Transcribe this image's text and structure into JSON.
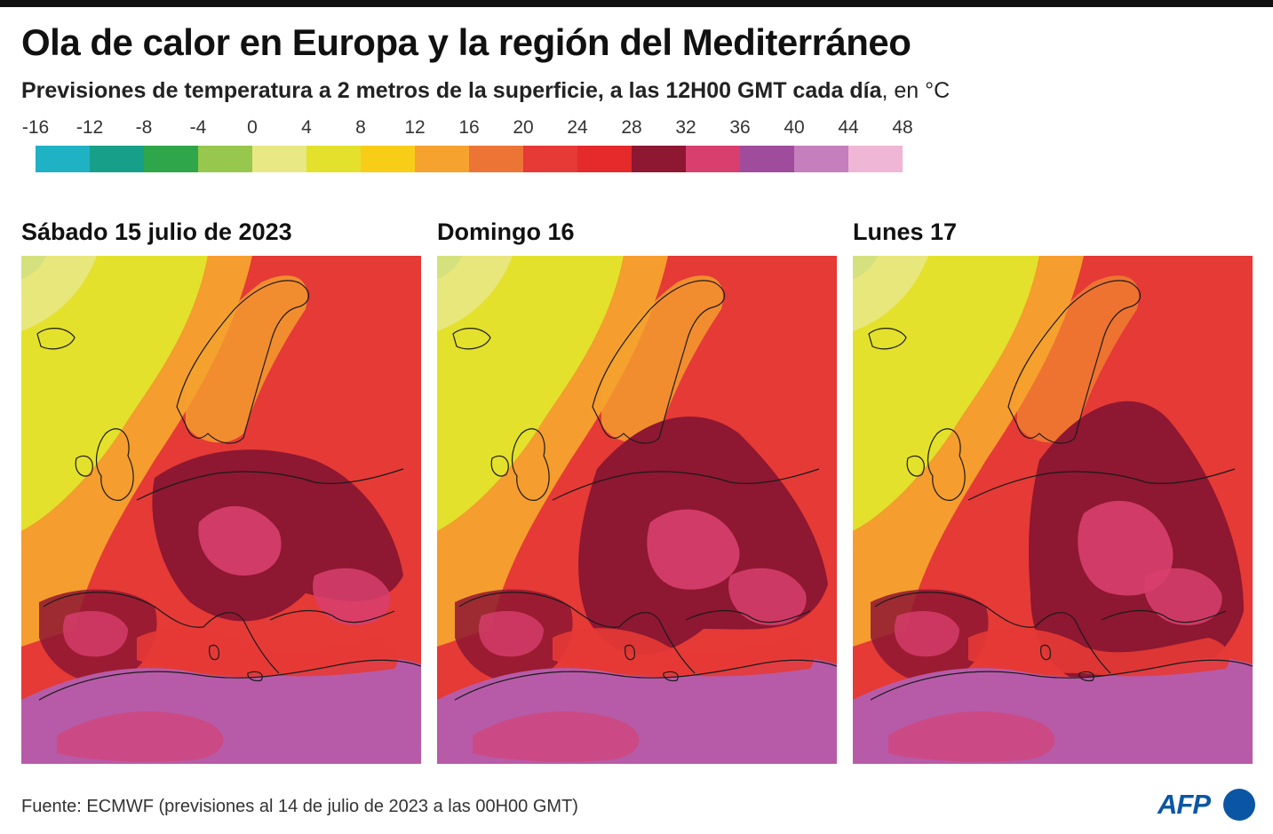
{
  "title": "Ola de calor en Europa y la región del Mediterráneo",
  "subtitle": {
    "text": "Previsiones de temperatura a 2 metros de la superficie, a las 12H00 GMT cada día",
    "unit": ", en °C"
  },
  "legend": {
    "ticks": [
      "-16",
      "-12",
      "-8",
      "-4",
      "0",
      "4",
      "8",
      "12",
      "16",
      "20",
      "24",
      "28",
      "32",
      "36",
      "40",
      "44",
      "48"
    ],
    "colors": [
      "#1fb1c4",
      "#17a089",
      "#2fa64a",
      "#98c74d",
      "#e8e884",
      "#e3e12b",
      "#f7cd18",
      "#f5a22e",
      "#ec7536",
      "#e53a36",
      "#e42a2b",
      "#8e1731",
      "#d83f6e",
      "#a04c9c",
      "#c57fbc",
      "#f0b6d5"
    ]
  },
  "panels": [
    {
      "title": "Sábado 15 julio de 2023"
    },
    {
      "title": "Domingo 16"
    },
    {
      "title": "Lunes 17"
    }
  ],
  "source": "Fuente: ECMWF (previsiones al 14 de julio de 2023 a las 00H00 GMT)",
  "logo": {
    "text": "AFP"
  },
  "colors": {
    "cool_ocean": "#e3e12b",
    "ocean_warm": "#f5a22e",
    "hot": "#e53a36",
    "very_hot": "#8e1731",
    "extreme": "#d83f6e",
    "desert": "#b75ba8",
    "brand": "#0b56a4"
  }
}
